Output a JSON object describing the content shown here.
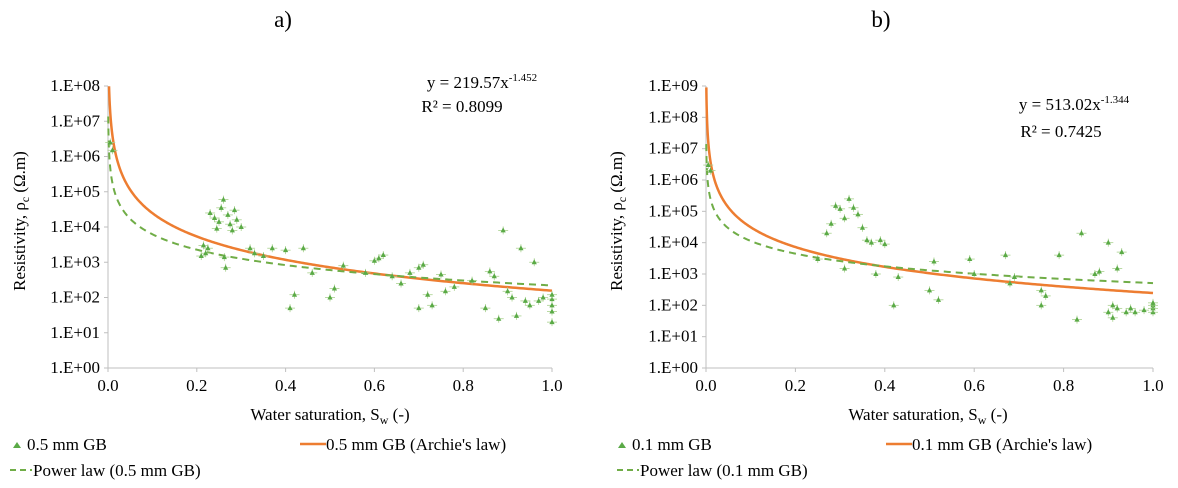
{
  "panels": [
    {
      "panel_label": "a)",
      "ylabel_main": "Resistivity, ρ",
      "ylabel_sub": "c",
      "ylabel_unit": " (Ω.m)",
      "xlabel_main": "Water saturation, S",
      "xlabel_sub": "w",
      "xlabel_unit": " (-)",
      "eq_prefix": "y = 219.57x",
      "eq_exponent": "-1.452",
      "r2": "R² = 0.8099",
      "legend": [
        "0.5 mm GB",
        "0.5 mm GB (Archie's law)",
        "Power law (0.5 mm GB)"
      ]
    },
    {
      "panel_label": "b)",
      "ylabel_main": "Resistivity, ρ",
      "ylabel_sub": "c",
      "ylabel_unit": " (Ω.m)",
      "xlabel_main": "Water saturation, S",
      "xlabel_sub": "w",
      "xlabel_unit": " (-)",
      "eq_prefix": "y = 513.02x",
      "eq_exponent": "-1.344",
      "r2": "R² = 0.7425",
      "legend": [
        "0.1 mm GB",
        "0.1 mm GB (Archie's law)",
        "Power law (0.1 mm GB)"
      ]
    }
  ],
  "colors": {
    "data": "#5aaa46",
    "archie": "#ed7d31",
    "power": "#70ad47",
    "axis": "#bfbfbf"
  },
  "chart_data": [
    {
      "type": "scatter",
      "title": "a)",
      "xlabel": "Water saturation, Sw (-)",
      "ylabel": "Resistivity, ρc (Ω.m)",
      "xlim": [
        0,
        1
      ],
      "ylim": [
        1,
        100000000
      ],
      "y_scale": "log",
      "x_ticks": [
        "0.0",
        "0.2",
        "0.4",
        "0.6",
        "0.8",
        "1.0"
      ],
      "y_ticks": [
        "1.E+00",
        "1.E+01",
        "1.E+02",
        "1.E+03",
        "1.E+04",
        "1.E+05",
        "1.E+06",
        "1.E+07",
        "1.E+08"
      ],
      "legend_position": "bottom",
      "series": [
        {
          "name": "0.5 mm GB",
          "kind": "points",
          "points": [
            [
              0.005,
              2500000
            ],
            [
              0.01,
              1500000
            ],
            [
              0.21,
              1500
            ],
            [
              0.215,
              3000
            ],
            [
              0.22,
              1800
            ],
            [
              0.225,
              2500
            ],
            [
              0.23,
              25000
            ],
            [
              0.24,
              18000
            ],
            [
              0.245,
              9000
            ],
            [
              0.25,
              14000
            ],
            [
              0.255,
              35000
            ],
            [
              0.26,
              60000
            ],
            [
              0.262,
              1400
            ],
            [
              0.265,
              700
            ],
            [
              0.27,
              22000
            ],
            [
              0.275,
              12000
            ],
            [
              0.28,
              8000
            ],
            [
              0.285,
              30000
            ],
            [
              0.29,
              16000
            ],
            [
              0.3,
              10000
            ],
            [
              0.32,
              2500
            ],
            [
              0.33,
              1800
            ],
            [
              0.35,
              1500
            ],
            [
              0.37,
              2500
            ],
            [
              0.4,
              2200
            ],
            [
              0.41,
              50
            ],
            [
              0.42,
              120
            ],
            [
              0.44,
              2500
            ],
            [
              0.46,
              500
            ],
            [
              0.5,
              100
            ],
            [
              0.51,
              180
            ],
            [
              0.53,
              800
            ],
            [
              0.58,
              500
            ],
            [
              0.6,
              1100
            ],
            [
              0.61,
              1300
            ],
            [
              0.62,
              1600
            ],
            [
              0.64,
              400
            ],
            [
              0.66,
              250
            ],
            [
              0.68,
              500
            ],
            [
              0.7,
              700
            ],
            [
              0.7,
              50
            ],
            [
              0.71,
              850
            ],
            [
              0.72,
              120
            ],
            [
              0.73,
              60
            ],
            [
              0.75,
              450
            ],
            [
              0.76,
              150
            ],
            [
              0.78,
              200
            ],
            [
              0.82,
              300
            ],
            [
              0.85,
              50
            ],
            [
              0.86,
              550
            ],
            [
              0.87,
              400
            ],
            [
              0.88,
              25
            ],
            [
              0.89,
              8000
            ],
            [
              0.9,
              150
            ],
            [
              0.91,
              100
            ],
            [
              0.92,
              30
            ],
            [
              0.93,
              2500
            ],
            [
              0.94,
              80
            ],
            [
              0.95,
              60
            ],
            [
              0.96,
              1000
            ],
            [
              0.97,
              80
            ],
            [
              0.98,
              100
            ],
            [
              1.0,
              20
            ],
            [
              1.0,
              40
            ],
            [
              1.0,
              60
            ],
            [
              1.0,
              90
            ],
            [
              1.0,
              120
            ]
          ]
        },
        {
          "name": "0.5 mm GB (Archie's law)",
          "kind": "curve",
          "equation": "y = 156*x^-2.2",
          "a": 156,
          "b": -2.2
        },
        {
          "name": "Power law (0.5 mm GB)",
          "kind": "curve",
          "equation": "y = 219.57*x^-1.452",
          "a": 219.57,
          "b": -1.452,
          "r2": 0.8099
        }
      ]
    },
    {
      "type": "scatter",
      "title": "b)",
      "xlabel": "Water saturation, Sw (-)",
      "ylabel": "Resistivity, ρc (Ω.m)",
      "xlim": [
        0,
        1
      ],
      "ylim": [
        1,
        1000000000
      ],
      "y_scale": "log",
      "x_ticks": [
        "0.0",
        "0.2",
        "0.4",
        "0.6",
        "0.8",
        "1.0"
      ],
      "y_ticks": [
        "1.E+00",
        "1.E+01",
        "1.E+02",
        "1.E+03",
        "1.E+04",
        "1.E+05",
        "1.E+06",
        "1.E+07",
        "1.E+08",
        "1.E+09"
      ],
      "legend_position": "bottom",
      "series": [
        {
          "name": "0.1 mm GB",
          "kind": "points",
          "points": [
            [
              0.005,
              3000000
            ],
            [
              0.01,
              2000000
            ],
            [
              0.25,
              3000
            ],
            [
              0.27,
              20000
            ],
            [
              0.28,
              40000
            ],
            [
              0.29,
              150000
            ],
            [
              0.3,
              120000
            ],
            [
              0.31,
              60000
            ],
            [
              0.31,
              1500
            ],
            [
              0.32,
              250000
            ],
            [
              0.33,
              130000
            ],
            [
              0.34,
              80000
            ],
            [
              0.35,
              30000
            ],
            [
              0.36,
              12000
            ],
            [
              0.37,
              10000
            ],
            [
              0.38,
              1000
            ],
            [
              0.39,
              12000
            ],
            [
              0.4,
              9000
            ],
            [
              0.42,
              100
            ],
            [
              0.43,
              800
            ],
            [
              0.5,
              300
            ],
            [
              0.51,
              2500
            ],
            [
              0.52,
              150
            ],
            [
              0.59,
              3000
            ],
            [
              0.6,
              1000
            ],
            [
              0.67,
              4000
            ],
            [
              0.68,
              500
            ],
            [
              0.69,
              800
            ],
            [
              0.75,
              100
            ],
            [
              0.75,
              300
            ],
            [
              0.76,
              200
            ],
            [
              0.79,
              4000
            ],
            [
              0.83,
              35
            ],
            [
              0.84,
              20000
            ],
            [
              0.87,
              1000
            ],
            [
              0.88,
              1200
            ],
            [
              0.9,
              10000
            ],
            [
              0.9,
              60
            ],
            [
              0.91,
              100
            ],
            [
              0.91,
              40
            ],
            [
              0.92,
              1500
            ],
            [
              0.92,
              80
            ],
            [
              0.93,
              5000
            ],
            [
              0.94,
              60
            ],
            [
              0.95,
              80
            ],
            [
              0.96,
              60
            ],
            [
              0.98,
              70
            ],
            [
              1.0,
              60
            ],
            [
              1.0,
              80
            ],
            [
              1.0,
              100
            ],
            [
              1.0,
              120
            ]
          ]
        },
        {
          "name": "0.1 mm GB (Archie's law)",
          "kind": "curve",
          "equation": "y = 247*x^-2.1",
          "a": 247,
          "b": -2.1
        },
        {
          "name": "Power law (0.1 mm GB)",
          "kind": "curve",
          "equation": "y = 513.02*x^-1.344",
          "a": 513.02,
          "b": -1.344,
          "r2": 0.7425
        }
      ]
    }
  ]
}
